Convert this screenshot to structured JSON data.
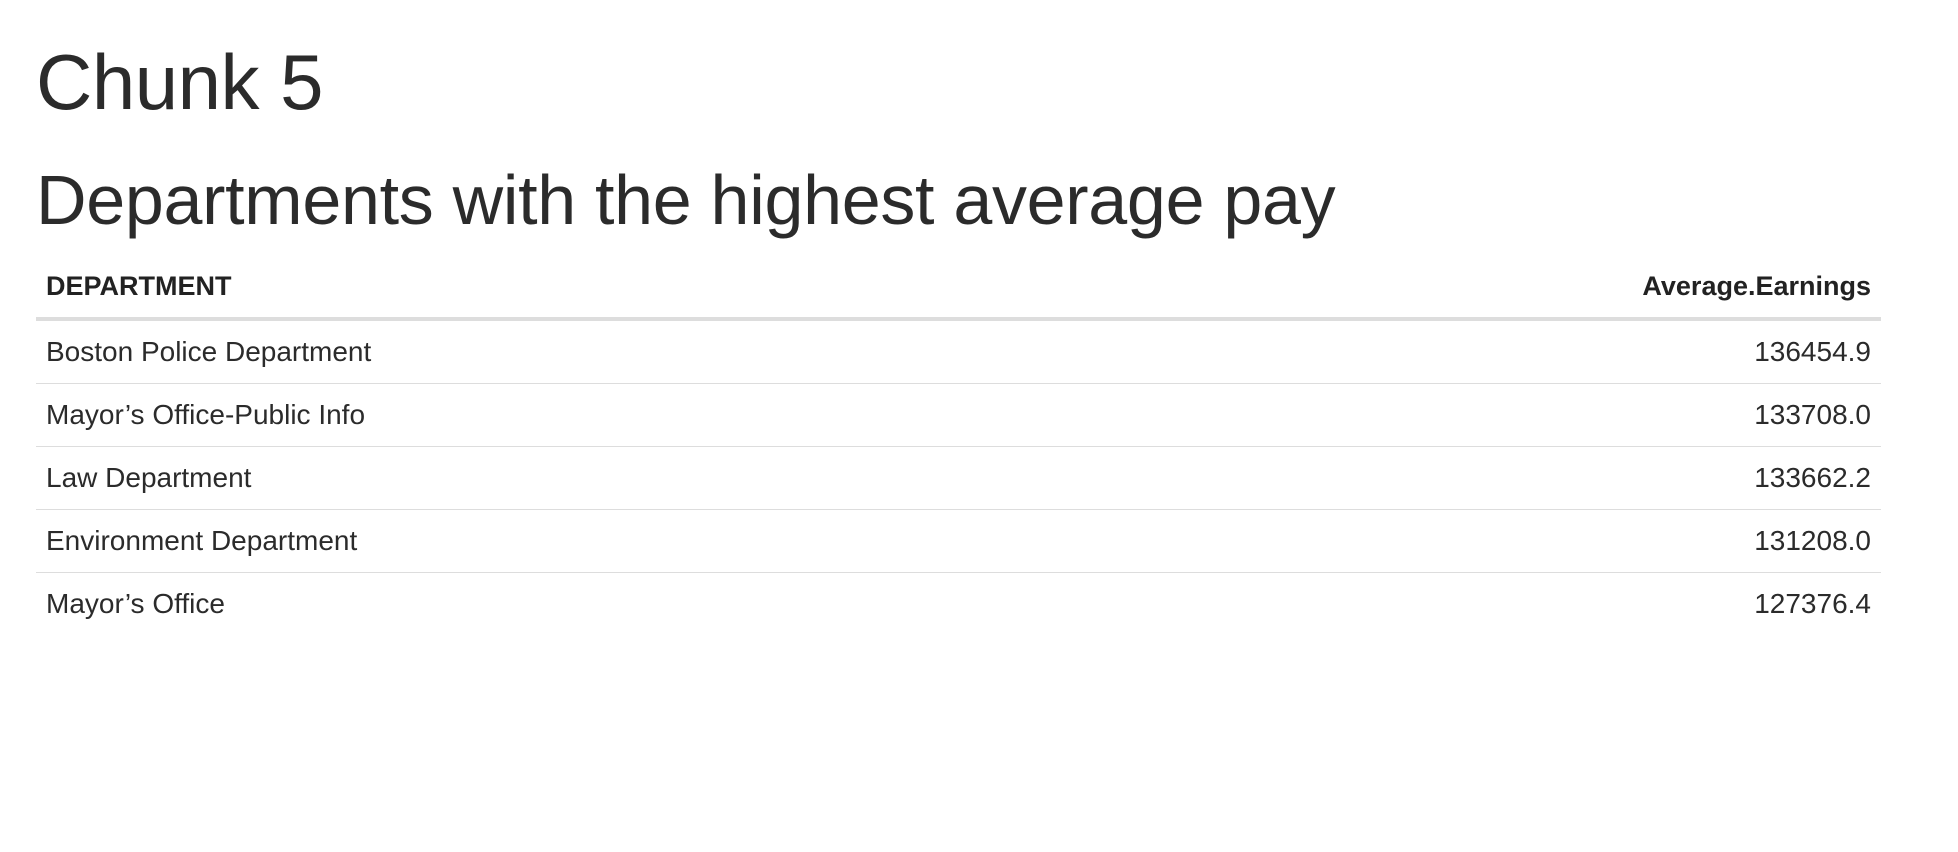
{
  "heading": "Chunk 5",
  "subheading": "Departments with the highest average pay",
  "table": {
    "columns": [
      "DEPARTMENT",
      "Average.Earnings"
    ],
    "rows": [
      {
        "department": "Boston Police Department",
        "earnings": "136454.9"
      },
      {
        "department": "Mayor’s Office-Public Info",
        "earnings": "133708.0"
      },
      {
        "department": "Law Department",
        "earnings": "133662.2"
      },
      {
        "department": "Environment Department",
        "earnings": "131208.0"
      },
      {
        "department": "Mayor’s Office",
        "earnings": "127376.4"
      }
    ]
  }
}
